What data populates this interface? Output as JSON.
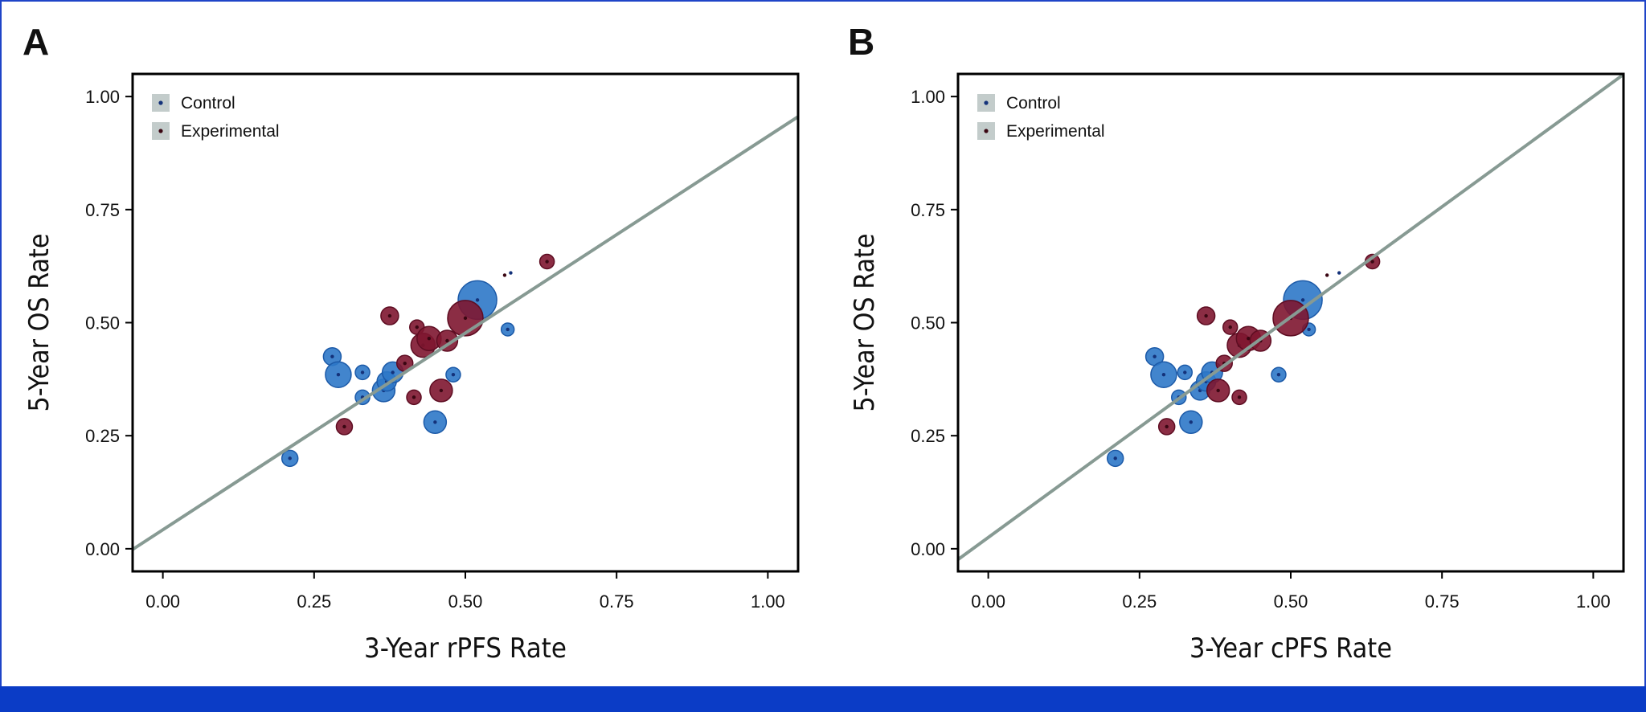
{
  "colors": {
    "control": "#2e78c8",
    "control_edge": "#1c5aa8",
    "control_dot": "#14327a",
    "experimental": "#7e1630",
    "experimental_edge": "#5e0d22",
    "experimental_dot": "#3a0612",
    "fit_line": "#879a93",
    "legend_box": "#c3cccb",
    "frame": "#1f44c8",
    "footer": "#0b3cc6"
  },
  "chart_data": [
    {
      "panel": "A",
      "type": "scatter",
      "title": "",
      "xlabel": "3-Year rPFS Rate",
      "ylabel": "5-Year OS Rate",
      "xlim": [
        -0.05,
        1.05
      ],
      "ylim": [
        -0.05,
        1.05
      ],
      "xticks": [
        "0.00",
        "0.25",
        "0.50",
        "0.75",
        "1.00"
      ],
      "yticks": [
        "0.00",
        "0.25",
        "0.50",
        "0.75",
        "1.00"
      ],
      "legend": {
        "position": "top-left",
        "entries": [
          "Control",
          "Experimental"
        ]
      },
      "fit_line": {
        "intercept": 0.042,
        "slope": 0.87
      },
      "series": [
        {
          "name": "Control",
          "points": [
            {
              "x": 0.21,
              "y": 0.2,
              "size": 10
            },
            {
              "x": 0.28,
              "y": 0.425,
              "size": 11
            },
            {
              "x": 0.29,
              "y": 0.385,
              "size": 16
            },
            {
              "x": 0.33,
              "y": 0.39,
              "size": 9
            },
            {
              "x": 0.33,
              "y": 0.335,
              "size": 9
            },
            {
              "x": 0.365,
              "y": 0.35,
              "size": 14
            },
            {
              "x": 0.37,
              "y": 0.37,
              "size": 12
            },
            {
              "x": 0.38,
              "y": 0.39,
              "size": 13
            },
            {
              "x": 0.45,
              "y": 0.28,
              "size": 14
            },
            {
              "x": 0.48,
              "y": 0.385,
              "size": 9
            },
            {
              "x": 0.52,
              "y": 0.55,
              "size": 24
            },
            {
              "x": 0.57,
              "y": 0.485,
              "size": 8
            },
            {
              "x": 0.575,
              "y": 0.61,
              "size": 1.5
            }
          ]
        },
        {
          "name": "Experimental",
          "points": [
            {
              "x": 0.3,
              "y": 0.27,
              "size": 10
            },
            {
              "x": 0.375,
              "y": 0.515,
              "size": 11
            },
            {
              "x": 0.4,
              "y": 0.41,
              "size": 10
            },
            {
              "x": 0.415,
              "y": 0.335,
              "size": 9
            },
            {
              "x": 0.42,
              "y": 0.49,
              "size": 9
            },
            {
              "x": 0.43,
              "y": 0.45,
              "size": 15
            },
            {
              "x": 0.44,
              "y": 0.465,
              "size": 15
            },
            {
              "x": 0.46,
              "y": 0.35,
              "size": 14
            },
            {
              "x": 0.47,
              "y": 0.46,
              "size": 13
            },
            {
              "x": 0.5,
              "y": 0.51,
              "size": 22
            },
            {
              "x": 0.565,
              "y": 0.605,
              "size": 1.5
            },
            {
              "x": 0.635,
              "y": 0.635,
              "size": 9
            }
          ]
        }
      ]
    },
    {
      "panel": "B",
      "type": "scatter",
      "title": "",
      "xlabel": "3-Year cPFS Rate",
      "ylabel": "5-Year OS Rate",
      "xlim": [
        -0.05,
        1.05
      ],
      "ylim": [
        -0.05,
        1.05
      ],
      "xticks": [
        "0.00",
        "0.25",
        "0.50",
        "0.75",
        "1.00"
      ],
      "yticks": [
        "0.00",
        "0.25",
        "0.50",
        "0.75",
        "1.00"
      ],
      "legend": {
        "position": "top-left",
        "entries": [
          "Control",
          "Experimental"
        ]
      },
      "fit_line": {
        "intercept": 0.025,
        "slope": 0.975
      },
      "series": [
        {
          "name": "Control",
          "points": [
            {
              "x": 0.21,
              "y": 0.2,
              "size": 10
            },
            {
              "x": 0.275,
              "y": 0.425,
              "size": 11
            },
            {
              "x": 0.29,
              "y": 0.385,
              "size": 16
            },
            {
              "x": 0.315,
              "y": 0.335,
              "size": 9
            },
            {
              "x": 0.325,
              "y": 0.39,
              "size": 9
            },
            {
              "x": 0.335,
              "y": 0.28,
              "size": 14
            },
            {
              "x": 0.35,
              "y": 0.35,
              "size": 12
            },
            {
              "x": 0.36,
              "y": 0.37,
              "size": 12
            },
            {
              "x": 0.37,
              "y": 0.39,
              "size": 13
            },
            {
              "x": 0.48,
              "y": 0.385,
              "size": 9
            },
            {
              "x": 0.52,
              "y": 0.55,
              "size": 24
            },
            {
              "x": 0.53,
              "y": 0.485,
              "size": 8
            },
            {
              "x": 0.58,
              "y": 0.61,
              "size": 1.5
            }
          ]
        },
        {
          "name": "Experimental",
          "points": [
            {
              "x": 0.295,
              "y": 0.27,
              "size": 10
            },
            {
              "x": 0.36,
              "y": 0.515,
              "size": 11
            },
            {
              "x": 0.38,
              "y": 0.35,
              "size": 14
            },
            {
              "x": 0.39,
              "y": 0.41,
              "size": 10
            },
            {
              "x": 0.4,
              "y": 0.49,
              "size": 9
            },
            {
              "x": 0.415,
              "y": 0.335,
              "size": 9
            },
            {
              "x": 0.415,
              "y": 0.45,
              "size": 15
            },
            {
              "x": 0.43,
              "y": 0.465,
              "size": 15
            },
            {
              "x": 0.45,
              "y": 0.46,
              "size": 13
            },
            {
              "x": 0.5,
              "y": 0.51,
              "size": 22
            },
            {
              "x": 0.56,
              "y": 0.605,
              "size": 1.5
            },
            {
              "x": 0.635,
              "y": 0.635,
              "size": 9
            }
          ]
        }
      ]
    }
  ]
}
